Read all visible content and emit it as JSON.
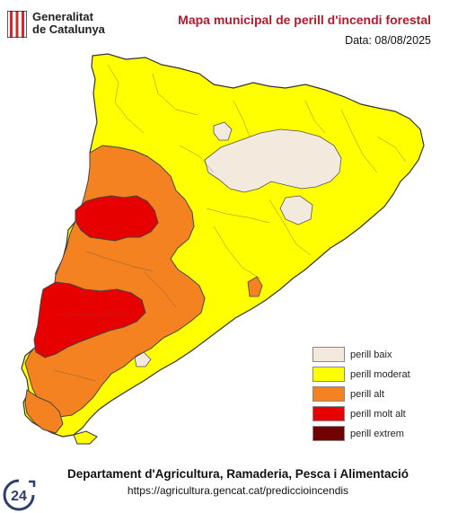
{
  "header": {
    "logo_line1": "Generalitat",
    "logo_line2": "de Catalunya",
    "title": "Mapa municipal de perill d'incendi forestal",
    "date": "Data: 08/08/2025"
  },
  "legend": {
    "items": [
      {
        "label": "perill baix",
        "color": "#f3e9dc"
      },
      {
        "label": "perill moderat",
        "color": "#ffff00"
      },
      {
        "label": "perill alt",
        "color": "#f58220"
      },
      {
        "label": "perill molt alt",
        "color": "#e60000"
      },
      {
        "label": "perill extrem",
        "color": "#730000"
      }
    ]
  },
  "footer": {
    "department": "Departament d'Agricultura, Ramaderia, Pesca i Alimentació",
    "url": "https://agricultura.gencat.cat/prediccioincendis"
  },
  "badge": {
    "text": "24"
  },
  "colors": {
    "title": "#b01c2e",
    "border": "#333333"
  }
}
